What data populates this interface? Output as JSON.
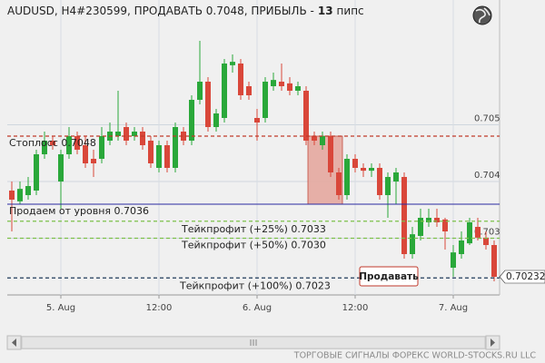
{
  "chart_data": {
    "type": "candlestick",
    "header": {
      "text": "AUDUSD, H4#230599, ПРОДАВАТЬ 0.7048, ПРИБЫЛЬ -",
      "profit": 13,
      "unit": "пипс"
    },
    "categories": [
      null,
      null,
      null,
      null,
      null,
      null,
      "5. Aug",
      null,
      null,
      null,
      null,
      null,
      null,
      null,
      null,
      null,
      null,
      null,
      "12:00",
      null,
      null,
      null,
      null,
      null,
      null,
      null,
      null,
      null,
      null,
      null,
      "6. Aug",
      null,
      null,
      null,
      null,
      null,
      null,
      null,
      null,
      null,
      null,
      null,
      "12:00",
      null,
      null,
      null,
      null,
      null,
      null,
      null,
      null,
      null,
      null,
      null,
      "7. Aug",
      null,
      null,
      null,
      null,
      null
    ],
    "open": [
      0.70384,
      0.70365,
      0.70376,
      0.70384,
      0.70448,
      0.70472,
      0.704,
      0.70448,
      0.7048,
      0.70464,
      0.7044,
      0.7044,
      0.70472,
      0.7048,
      0.70496,
      0.7048,
      0.70488,
      0.70472,
      0.70424,
      0.70464,
      0.70424,
      0.70488,
      0.70472,
      0.70544,
      0.70576,
      0.70496,
      0.70512,
      0.70605,
      0.70608,
      0.70568,
      0.70512,
      0.70512,
      0.70568,
      0.70576,
      0.70573,
      0.7056,
      0.7056,
      0.7048,
      0.70464,
      0.7048,
      0.70416,
      0.70376,
      0.7044,
      0.70424,
      0.70419,
      0.70424,
      0.70376,
      0.704,
      0.70408,
      0.70272,
      0.70304,
      0.70328,
      0.70336,
      0.70333,
      0.70248,
      0.70272,
      0.70291,
      0.7032,
      0.70301,
      0.70288
    ],
    "high": [
      0.704,
      0.704,
      0.70408,
      0.70456,
      0.70488,
      0.7048,
      0.70456,
      0.70496,
      0.70488,
      0.7048,
      0.70456,
      0.70496,
      0.70504,
      0.7056,
      0.70504,
      0.70496,
      0.70496,
      0.7048,
      0.70472,
      0.70472,
      0.70504,
      0.70496,
      0.70552,
      0.70648,
      0.70584,
      0.70528,
      0.70616,
      0.70624,
      0.70616,
      0.70576,
      0.70528,
      0.70584,
      0.70592,
      0.70608,
      0.70584,
      0.70576,
      0.70568,
      0.70488,
      0.70488,
      0.70488,
      0.70424,
      0.70448,
      0.70448,
      0.70432,
      0.70432,
      0.70432,
      0.70416,
      0.70424,
      0.70416,
      0.7032,
      0.70352,
      0.70352,
      0.70352,
      0.70336,
      0.70288,
      0.70312,
      0.70336,
      0.70336,
      0.70312,
      0.70296
    ],
    "low": [
      0.70312,
      0.7036,
      0.70368,
      0.70376,
      0.7044,
      0.70456,
      0.70352,
      0.7044,
      0.70448,
      0.70424,
      0.70408,
      0.70432,
      0.70464,
      0.70472,
      0.70464,
      0.70472,
      0.70456,
      0.70424,
      0.70416,
      0.70416,
      0.70416,
      0.70464,
      0.70464,
      0.70536,
      0.70488,
      0.70488,
      0.70504,
      0.70592,
      0.70544,
      0.70544,
      0.70472,
      0.70504,
      0.7056,
      0.7056,
      0.70552,
      0.70552,
      0.70464,
      0.70464,
      0.70456,
      0.70408,
      0.70368,
      0.70368,
      0.70416,
      0.70408,
      0.70408,
      0.70368,
      0.70336,
      0.7036,
      0.70264,
      0.70264,
      0.70296,
      0.7032,
      0.7032,
      0.7028,
      0.70232,
      0.70264,
      0.70288,
      0.70296,
      0.7028,
      0.70224
    ],
    "close": [
      0.70368,
      0.70387,
      0.70392,
      0.70448,
      0.70472,
      0.70464,
      0.70448,
      0.7048,
      0.70456,
      0.70432,
      0.70432,
      0.7048,
      0.70488,
      0.70488,
      0.70472,
      0.70488,
      0.70464,
      0.70432,
      0.70464,
      0.70424,
      0.70496,
      0.70472,
      0.70544,
      0.70576,
      0.70496,
      0.7052,
      0.70608,
      0.70611,
      0.70552,
      0.70552,
      0.70504,
      0.70576,
      0.70579,
      0.70568,
      0.7056,
      0.70568,
      0.70472,
      0.70472,
      0.7048,
      0.70416,
      0.70376,
      0.7044,
      0.70424,
      0.70419,
      0.70424,
      0.70376,
      0.70408,
      0.70416,
      0.70272,
      0.70307,
      0.70336,
      0.70336,
      0.70328,
      0.70312,
      0.70275,
      0.70296,
      0.70328,
      0.70301,
      0.70288,
      0.70232
    ],
    "up_color": "#2aa83a",
    "down_color": "#d9473a",
    "ylim": [
      0.702,
      0.7072
    ],
    "yticks": [
      0.705,
      0.704,
      0.703
    ],
    "grid": true,
    "levels": [
      {
        "text": "Стоплосс 0.7048",
        "value": 0.7048,
        "color": "#c0392b"
      },
      {
        "text": "Продаем от уровня 0.7036",
        "value": 0.7036,
        "color": "#2a2aa0"
      },
      {
        "text": "Тейкпрофит (+25%) 0.7033",
        "value": 0.7033,
        "color": "#7cc04a"
      },
      {
        "text": "Тейкпрофит (+50%) 0.7030",
        "value": 0.703,
        "color": "#7cc04a"
      },
      {
        "text": "Тейкпрофит (+100%) 0.7023",
        "value": 0.7023,
        "color": "#1e3a5a"
      }
    ],
    "current_price": 0.70232,
    "button": "Продавать",
    "footer": "ТОРГОВЫЕ СИГНАЛЫ ФОРЕКС WORLD-STOCKS.RU LLC"
  }
}
